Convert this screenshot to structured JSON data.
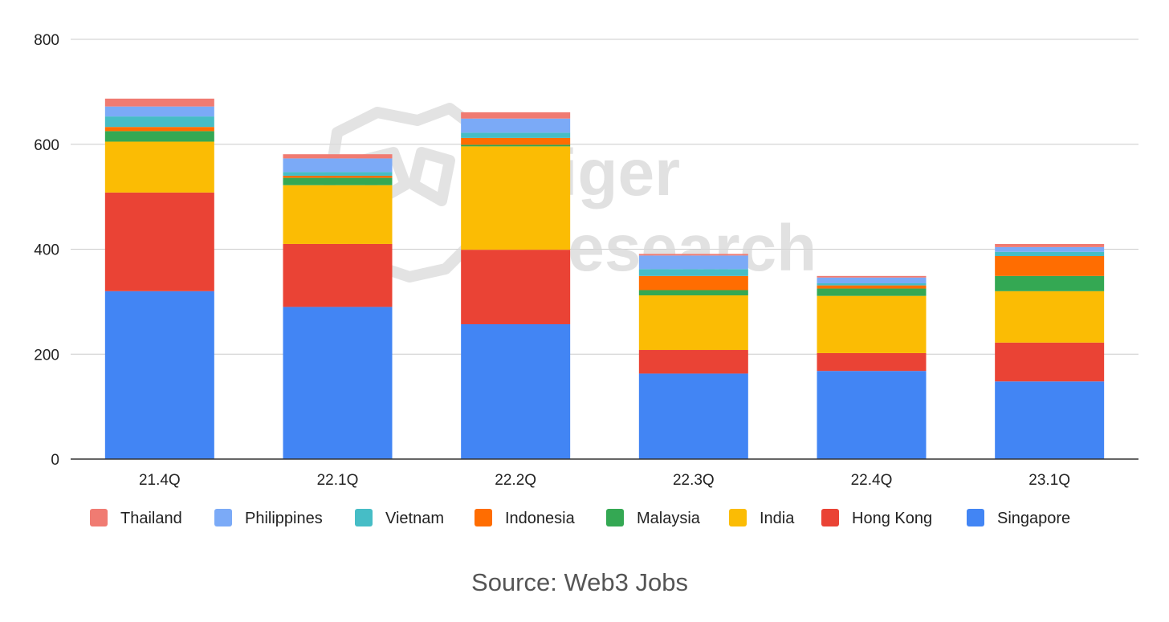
{
  "chart_data": {
    "type": "bar",
    "stacked": true,
    "categories": [
      "21.4Q",
      "22.1Q",
      "22.2Q",
      "22.3Q",
      "22.4Q",
      "23.1Q"
    ],
    "ylim": [
      0,
      800
    ],
    "yticks": [
      "0",
      "200",
      "400",
      "600",
      "800"
    ],
    "grid": true,
    "legend_position": "bottom",
    "series": [
      {
        "name": "Singapore",
        "color": "#4285F4",
        "values": [
          320,
          290,
          257,
          163,
          168,
          148
        ]
      },
      {
        "name": "Hong Kong",
        "color": "#EA4335",
        "values": [
          188,
          120,
          142,
          45,
          34,
          74
        ]
      },
      {
        "name": "India",
        "color": "#FBBC04",
        "values": [
          97,
          112,
          197,
          104,
          109,
          98
        ]
      },
      {
        "name": "Malaysia",
        "color": "#34A853",
        "values": [
          20,
          14,
          3,
          10,
          14,
          29
        ]
      },
      {
        "name": "Indonesia",
        "color": "#FF6D01",
        "values": [
          8,
          4,
          13,
          27,
          6,
          38
        ]
      },
      {
        "name": "Vietnam",
        "color": "#46BDC6",
        "values": [
          20,
          7,
          10,
          13,
          4,
          8
        ]
      },
      {
        "name": "Philippines",
        "color": "#7BAAF7",
        "values": [
          19,
          26,
          27,
          26,
          11,
          9
        ]
      },
      {
        "name": "Thailand",
        "color": "#F07B72",
        "values": [
          15,
          8,
          12,
          3,
          3,
          6
        ]
      }
    ],
    "legend_order": [
      "Thailand",
      "Philippines",
      "Vietnam",
      "Indonesia",
      "Malaysia",
      "India",
      "Hong Kong",
      "Singapore"
    ]
  },
  "watermark": {
    "line1": "Tiger",
    "line2": "Research"
  },
  "source": "Source: Web3 Jobs"
}
